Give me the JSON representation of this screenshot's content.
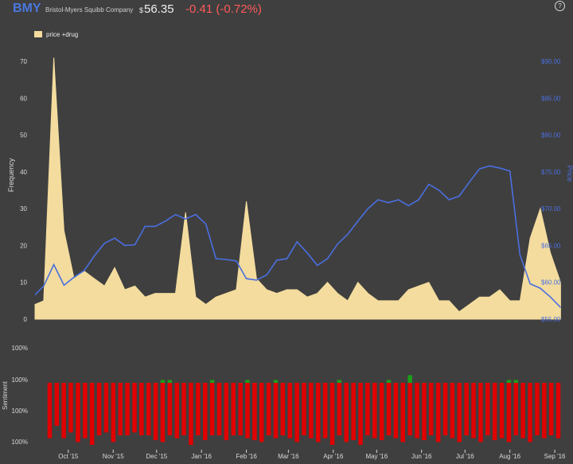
{
  "header": {
    "ticker": "BMY",
    "company": "Bristol-Myers Squibb Company",
    "currency_symbol": "$",
    "price": "56.35",
    "change": "-0.41 (-0.72%)",
    "help_label": "?"
  },
  "colors": {
    "background": "#3f3f3f",
    "frequency_fill": "#f3dc9e",
    "price_line": "#4a6fe0",
    "negative": "#e00000",
    "positive": "#1a9e1a",
    "ticker": "#4a78e0",
    "change": "#ff5a5a"
  },
  "chart_data": [
    {
      "type": "area",
      "legend": {
        "label": "price +drug",
        "placement": "top-left"
      },
      "xlabel": "",
      "ylabel": "Frequency",
      "y2label": "Price",
      "grid": false,
      "ylim": [
        0,
        70
      ],
      "y_ticks": [
        "0",
        "10",
        "20",
        "30",
        "40",
        "50",
        "60",
        "70"
      ],
      "y2lim": [
        55,
        90
      ],
      "y2_ticks": [
        "$55.00",
        "$60.00",
        "$65.00",
        "$70.00",
        "$75.00",
        "$80.00",
        "$85.00",
        "$90.00"
      ],
      "x_ticks": [
        "Oct '15",
        "Nov '15",
        "Dec '15",
        "Jan '16",
        "Feb '16",
        "Mar '16",
        "Apr '16",
        "May '16",
        "Jun '16",
        "Jul '16",
        "Aug '16",
        "Sep '16"
      ],
      "x_start": "2015-09-08",
      "x_end": "2016-09-07",
      "series": [
        {
          "name": "price +drug",
          "points": [
            [
              "2015-09-08",
              4
            ],
            [
              "2015-09-14",
              5
            ],
            [
              "2015-09-21",
              71
            ],
            [
              "2015-09-28",
              24
            ],
            [
              "2015-10-05",
              11
            ],
            [
              "2015-10-12",
              13
            ],
            [
              "2015-10-19",
              11
            ],
            [
              "2015-10-26",
              9
            ],
            [
              "2015-11-02",
              14
            ],
            [
              "2015-11-09",
              8
            ],
            [
              "2015-11-16",
              9
            ],
            [
              "2015-11-23",
              6
            ],
            [
              "2015-11-30",
              7
            ],
            [
              "2015-12-07",
              7
            ],
            [
              "2015-12-14",
              7
            ],
            [
              "2015-12-21",
              29
            ],
            [
              "2015-12-28",
              6
            ],
            [
              "2016-01-04",
              4
            ],
            [
              "2016-01-11",
              6
            ],
            [
              "2016-01-18",
              7
            ],
            [
              "2016-01-25",
              8
            ],
            [
              "2016-02-01",
              32
            ],
            [
              "2016-02-08",
              11
            ],
            [
              "2016-02-15",
              8
            ],
            [
              "2016-02-22",
              7
            ],
            [
              "2016-02-29",
              8
            ],
            [
              "2016-03-07",
              8
            ],
            [
              "2016-03-14",
              6
            ],
            [
              "2016-03-21",
              7
            ],
            [
              "2016-03-28",
              10
            ],
            [
              "2016-04-04",
              7
            ],
            [
              "2016-04-11",
              5
            ],
            [
              "2016-04-18",
              10
            ],
            [
              "2016-04-25",
              7
            ],
            [
              "2016-05-02",
              5
            ],
            [
              "2016-05-09",
              5
            ],
            [
              "2016-05-16",
              5
            ],
            [
              "2016-05-23",
              8
            ],
            [
              "2016-05-30",
              9
            ],
            [
              "2016-06-06",
              10
            ],
            [
              "2016-06-13",
              5
            ],
            [
              "2016-06-20",
              5
            ],
            [
              "2016-06-27",
              2
            ],
            [
              "2016-07-04",
              4
            ],
            [
              "2016-07-11",
              6
            ],
            [
              "2016-07-18",
              6
            ],
            [
              "2016-07-25",
              8
            ],
            [
              "2016-08-01",
              5
            ],
            [
              "2016-08-08",
              5
            ],
            [
              "2016-08-15",
              22
            ],
            [
              "2016-08-22",
              30
            ],
            [
              "2016-08-29",
              18
            ],
            [
              "2016-09-05",
              10
            ]
          ]
        },
        {
          "name": "Price",
          "axis": "right",
          "points": [
            [
              "2015-09-08",
              58.3
            ],
            [
              "2015-09-14",
              59.5
            ],
            [
              "2015-09-21",
              62.4
            ],
            [
              "2015-09-28",
              59.6
            ],
            [
              "2015-10-05",
              60.7
            ],
            [
              "2015-10-12",
              61.6
            ],
            [
              "2015-10-19",
              63.6
            ],
            [
              "2015-10-26",
              65.3
            ],
            [
              "2015-11-02",
              66.0
            ],
            [
              "2015-11-09",
              65.0
            ],
            [
              "2015-11-16",
              65.1
            ],
            [
              "2015-11-23",
              67.6
            ],
            [
              "2015-11-30",
              67.6
            ],
            [
              "2015-12-07",
              68.3
            ],
            [
              "2015-12-14",
              69.2
            ],
            [
              "2015-12-21",
              68.6
            ],
            [
              "2015-12-28",
              69.2
            ],
            [
              "2016-01-04",
              67.9
            ],
            [
              "2016-01-11",
              63.2
            ],
            [
              "2016-01-18",
              63.1
            ],
            [
              "2016-01-25",
              62.9
            ],
            [
              "2016-02-01",
              60.5
            ],
            [
              "2016-02-08",
              60.3
            ],
            [
              "2016-02-15",
              61.0
            ],
            [
              "2016-02-22",
              63.0
            ],
            [
              "2016-02-29",
              63.2
            ],
            [
              "2016-03-07",
              65.5
            ],
            [
              "2016-03-14",
              64.0
            ],
            [
              "2016-03-21",
              62.3
            ],
            [
              "2016-03-28",
              63.2
            ],
            [
              "2016-04-04",
              65.2
            ],
            [
              "2016-04-11",
              66.5
            ],
            [
              "2016-04-18",
              68.3
            ],
            [
              "2016-04-25",
              70.0
            ],
            [
              "2016-05-02",
              71.2
            ],
            [
              "2016-05-09",
              70.8
            ],
            [
              "2016-05-16",
              71.2
            ],
            [
              "2016-05-23",
              70.4
            ],
            [
              "2016-05-30",
              71.2
            ],
            [
              "2016-06-06",
              73.3
            ],
            [
              "2016-06-13",
              72.5
            ],
            [
              "2016-06-20",
              71.2
            ],
            [
              "2016-06-27",
              71.7
            ],
            [
              "2016-07-04",
              73.6
            ],
            [
              "2016-07-11",
              75.4
            ],
            [
              "2016-07-18",
              75.8
            ],
            [
              "2016-07-25",
              75.5
            ],
            [
              "2016-08-01",
              75.1
            ],
            [
              "2016-08-08",
              63.7
            ],
            [
              "2016-08-15",
              59.8
            ],
            [
              "2016-08-22",
              59.2
            ],
            [
              "2016-08-29",
              58.0
            ],
            [
              "2016-09-05",
              56.6
            ]
          ]
        }
      ]
    },
    {
      "type": "bar",
      "ylabel": "Sentiment",
      "y_ticks": [
        "100%",
        "100%",
        "100%",
        "100%"
      ],
      "series": [
        {
          "name": "negative",
          "values": [
            58,
            45,
            58,
            52,
            62,
            58,
            65,
            55,
            52,
            62,
            55,
            55,
            52,
            55,
            55,
            60,
            62,
            55,
            58,
            55,
            65,
            55,
            60,
            55,
            55,
            60,
            55,
            55,
            58,
            60,
            62,
            55,
            58,
            55,
            58,
            62,
            55,
            58,
            62,
            58,
            65,
            55,
            62,
            60,
            65,
            55,
            58,
            60,
            55,
            58,
            62,
            55,
            58,
            60,
            55,
            62,
            55,
            58,
            62,
            55,
            58,
            62,
            55,
            60,
            58,
            62,
            55,
            58,
            62,
            55,
            58,
            55,
            58
          ]
        },
        {
          "name": "positive",
          "values": [
            0,
            0,
            0,
            0,
            0,
            0,
            0,
            0,
            0,
            0,
            0,
            0,
            0,
            0,
            0,
            0,
            3,
            3,
            0,
            0,
            0,
            0,
            0,
            3,
            0,
            0,
            0,
            0,
            3,
            0,
            0,
            0,
            3,
            0,
            0,
            0,
            0,
            0,
            0,
            0,
            0,
            3,
            0,
            0,
            0,
            0,
            0,
            0,
            3,
            0,
            0,
            8,
            0,
            0,
            0,
            0,
            0,
            0,
            0,
            0,
            0,
            0,
            0,
            0,
            0,
            3,
            3,
            0,
            0,
            0,
            0,
            0,
            0
          ]
        }
      ]
    }
  ]
}
